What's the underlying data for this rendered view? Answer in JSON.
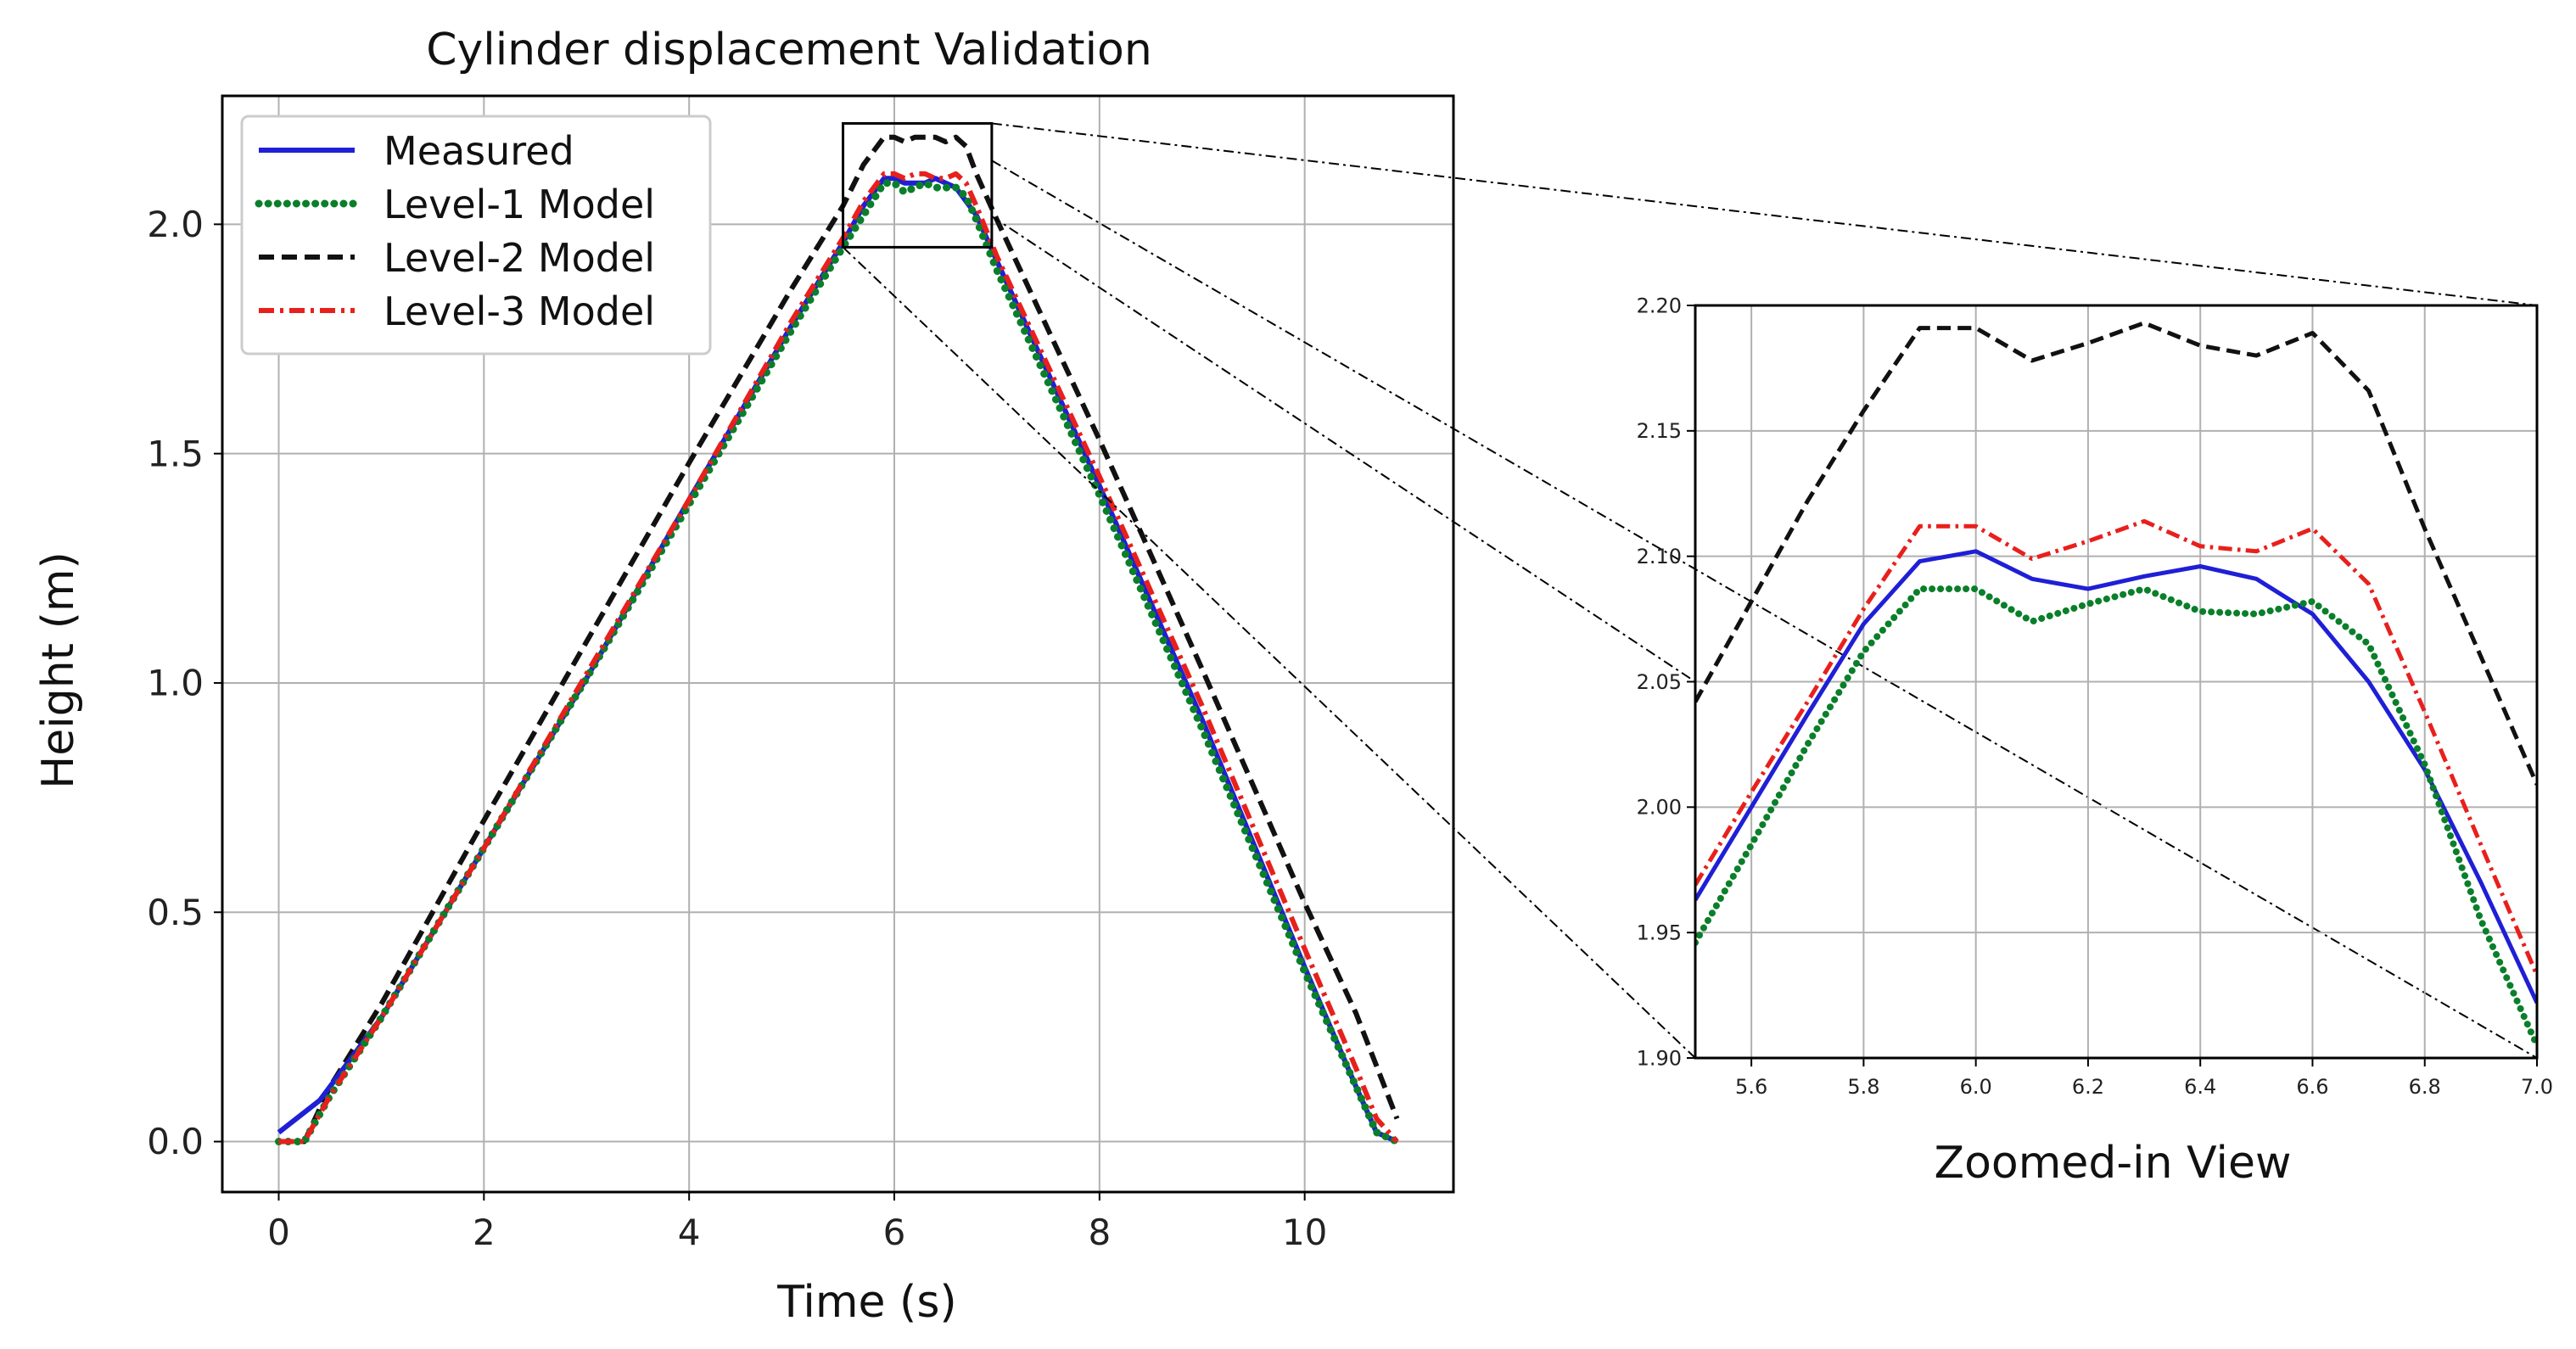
{
  "chart_data": [
    {
      "id": "main",
      "type": "line",
      "title": "Cylinder displacement Validation",
      "xlabel": "Time (s)",
      "ylabel": "Height (m)",
      "xlim": [
        -0.55,
        11.45
      ],
      "ylim": [
        -0.11,
        2.28
      ],
      "xticks": [
        0,
        2,
        4,
        6,
        8,
        10
      ],
      "xtick_labels": [
        "0",
        "2",
        "4",
        "6",
        "8",
        "10"
      ],
      "yticks": [
        0.0,
        0.5,
        1.0,
        1.5,
        2.0
      ],
      "ytick_labels": [
        "0.0",
        "0.5",
        "1.0",
        "1.5",
        "2.0"
      ],
      "grid": true,
      "legend_position": "top-left",
      "series": [
        {
          "name": "Measured",
          "style": "solid",
          "x": [
            0,
            0.4,
            1,
            2,
            3,
            4,
            5,
            5.5,
            5.7,
            5.9,
            6.0,
            6.1,
            6.2,
            6.3,
            6.4,
            6.5,
            6.6,
            6.7,
            6.8,
            7.0,
            8,
            9,
            10,
            10.5,
            10.7,
            10.9
          ],
          "y": [
            0.02,
            0.09,
            0.27,
            0.64,
            1.01,
            1.4,
            1.78,
            1.96,
            2.04,
            2.1,
            2.1,
            2.09,
            2.09,
            2.09,
            2.1,
            2.09,
            2.08,
            2.05,
            2.02,
            1.92,
            1.43,
            0.92,
            0.38,
            0.12,
            0.02,
            0.0
          ]
        },
        {
          "name": "Level-1 Model",
          "style": "dotted",
          "x": [
            0,
            0.25,
            0.5,
            1,
            2,
            3,
            4,
            5,
            5.5,
            5.7,
            5.9,
            6.0,
            6.1,
            6.2,
            6.3,
            6.4,
            6.5,
            6.6,
            6.7,
            6.8,
            7.0,
            8,
            9,
            10,
            10.5,
            10.7,
            10.9
          ],
          "y": [
            0.0,
            0.0,
            0.1,
            0.27,
            0.64,
            1.01,
            1.39,
            1.77,
            1.95,
            2.02,
            2.09,
            2.09,
            2.07,
            2.08,
            2.09,
            2.08,
            2.08,
            2.08,
            2.06,
            2.01,
            1.9,
            1.41,
            0.9,
            0.37,
            0.12,
            0.02,
            0.0
          ]
        },
        {
          "name": "Level-2 Model",
          "style": "dashed",
          "x": [
            0,
            0.25,
            0.5,
            1,
            2,
            3,
            4,
            5,
            5.5,
            5.7,
            5.9,
            6.0,
            6.1,
            6.2,
            6.3,
            6.4,
            6.5,
            6.6,
            6.7,
            6.8,
            7.0,
            8,
            9,
            10,
            10.5,
            10.9
          ],
          "y": [
            0.0,
            0.0,
            0.12,
            0.3,
            0.7,
            1.09,
            1.48,
            1.86,
            2.04,
            2.13,
            2.19,
            2.19,
            2.18,
            2.19,
            2.19,
            2.19,
            2.18,
            2.19,
            2.17,
            2.11,
            2.01,
            1.53,
            1.03,
            0.52,
            0.28,
            0.05
          ]
        },
        {
          "name": "Level-3 Model",
          "style": "dashdot",
          "x": [
            0,
            0.25,
            0.5,
            1,
            2,
            3,
            4,
            5,
            5.5,
            5.7,
            5.9,
            6.0,
            6.1,
            6.2,
            6.3,
            6.4,
            6.5,
            6.6,
            6.7,
            6.8,
            7.0,
            8,
            9,
            10,
            10.5,
            10.7,
            10.9
          ],
          "y": [
            0.0,
            0.0,
            0.1,
            0.27,
            0.64,
            1.02,
            1.4,
            1.79,
            1.97,
            2.05,
            2.11,
            2.11,
            2.1,
            2.11,
            2.11,
            2.1,
            2.1,
            2.11,
            2.09,
            2.04,
            1.93,
            1.45,
            0.95,
            0.42,
            0.16,
            0.05,
            0.0
          ]
        }
      ]
    },
    {
      "id": "zoom",
      "type": "line",
      "title": "Zoomed-in View",
      "xlim": [
        5.5,
        7.0
      ],
      "ylim": [
        1.9,
        2.2
      ],
      "xticks": [
        5.6,
        5.8,
        6.0,
        6.2,
        6.4,
        6.6,
        6.8,
        7.0
      ],
      "xtick_labels": [
        "5.6",
        "5.8",
        "6.0",
        "6.2",
        "6.4",
        "6.6",
        "6.8",
        "7.0"
      ],
      "yticks": [
        1.9,
        1.95,
        2.0,
        2.05,
        2.1,
        2.15,
        2.2
      ],
      "ytick_labels": [
        "1.90",
        "1.95",
        "2.00",
        "2.05",
        "2.10",
        "2.15",
        "2.20"
      ],
      "grid": true,
      "inset_region": {
        "x": [
          5.5,
          6.95
        ],
        "y": [
          1.95,
          2.22
        ]
      },
      "series": [
        {
          "name": "Measured",
          "style": "solid",
          "x": [
            5.5,
            5.6,
            5.7,
            5.8,
            5.9,
            6.0,
            6.1,
            6.2,
            6.3,
            6.4,
            6.5,
            6.6,
            6.7,
            6.8,
            6.9,
            7.0
          ],
          "y": [
            1.963,
            2.0,
            2.037,
            2.073,
            2.098,
            2.102,
            2.091,
            2.087,
            2.092,
            2.096,
            2.091,
            2.077,
            2.05,
            2.015,
            1.97,
            1.922
          ]
        },
        {
          "name": "Level-1 Model",
          "style": "dotted",
          "x": [
            5.5,
            5.6,
            5.7,
            5.8,
            5.9,
            6.0,
            6.1,
            6.2,
            6.3,
            6.4,
            6.5,
            6.6,
            6.7,
            6.8,
            6.9,
            7.0
          ],
          "y": [
            1.946,
            1.985,
            2.025,
            2.062,
            2.087,
            2.087,
            2.074,
            2.081,
            2.087,
            2.078,
            2.077,
            2.082,
            2.065,
            2.017,
            1.955,
            1.905
          ]
        },
        {
          "name": "Level-2 Model",
          "style": "dashed",
          "x": [
            5.5,
            5.6,
            5.7,
            5.8,
            5.9,
            6.0,
            6.1,
            6.2,
            6.3,
            6.4,
            6.5,
            6.6,
            6.7,
            6.8,
            6.9,
            7.0
          ],
          "y": [
            2.042,
            2.082,
            2.122,
            2.158,
            2.191,
            2.191,
            2.178,
            2.185,
            2.193,
            2.184,
            2.18,
            2.189,
            2.166,
            2.111,
            2.06,
            2.009
          ]
        },
        {
          "name": "Level-3 Model",
          "style": "dashdot",
          "x": [
            5.5,
            5.6,
            5.7,
            5.8,
            5.9,
            6.0,
            6.1,
            6.2,
            6.3,
            6.4,
            6.5,
            6.6,
            6.7,
            6.8,
            6.9,
            7.0
          ],
          "y": [
            1.969,
            2.006,
            2.042,
            2.079,
            2.112,
            2.112,
            2.099,
            2.106,
            2.114,
            2.104,
            2.102,
            2.111,
            2.089,
            2.038,
            1.985,
            1.933
          ]
        }
      ]
    }
  ],
  "series_styles": {
    "Measured": {
      "color": "#1f1fd6"
    },
    "Level-1 Model": {
      "color": "#0a7f2a"
    },
    "Level-2 Model": {
      "color": "#111111"
    },
    "Level-3 Model": {
      "color": "#e8201c"
    }
  }
}
